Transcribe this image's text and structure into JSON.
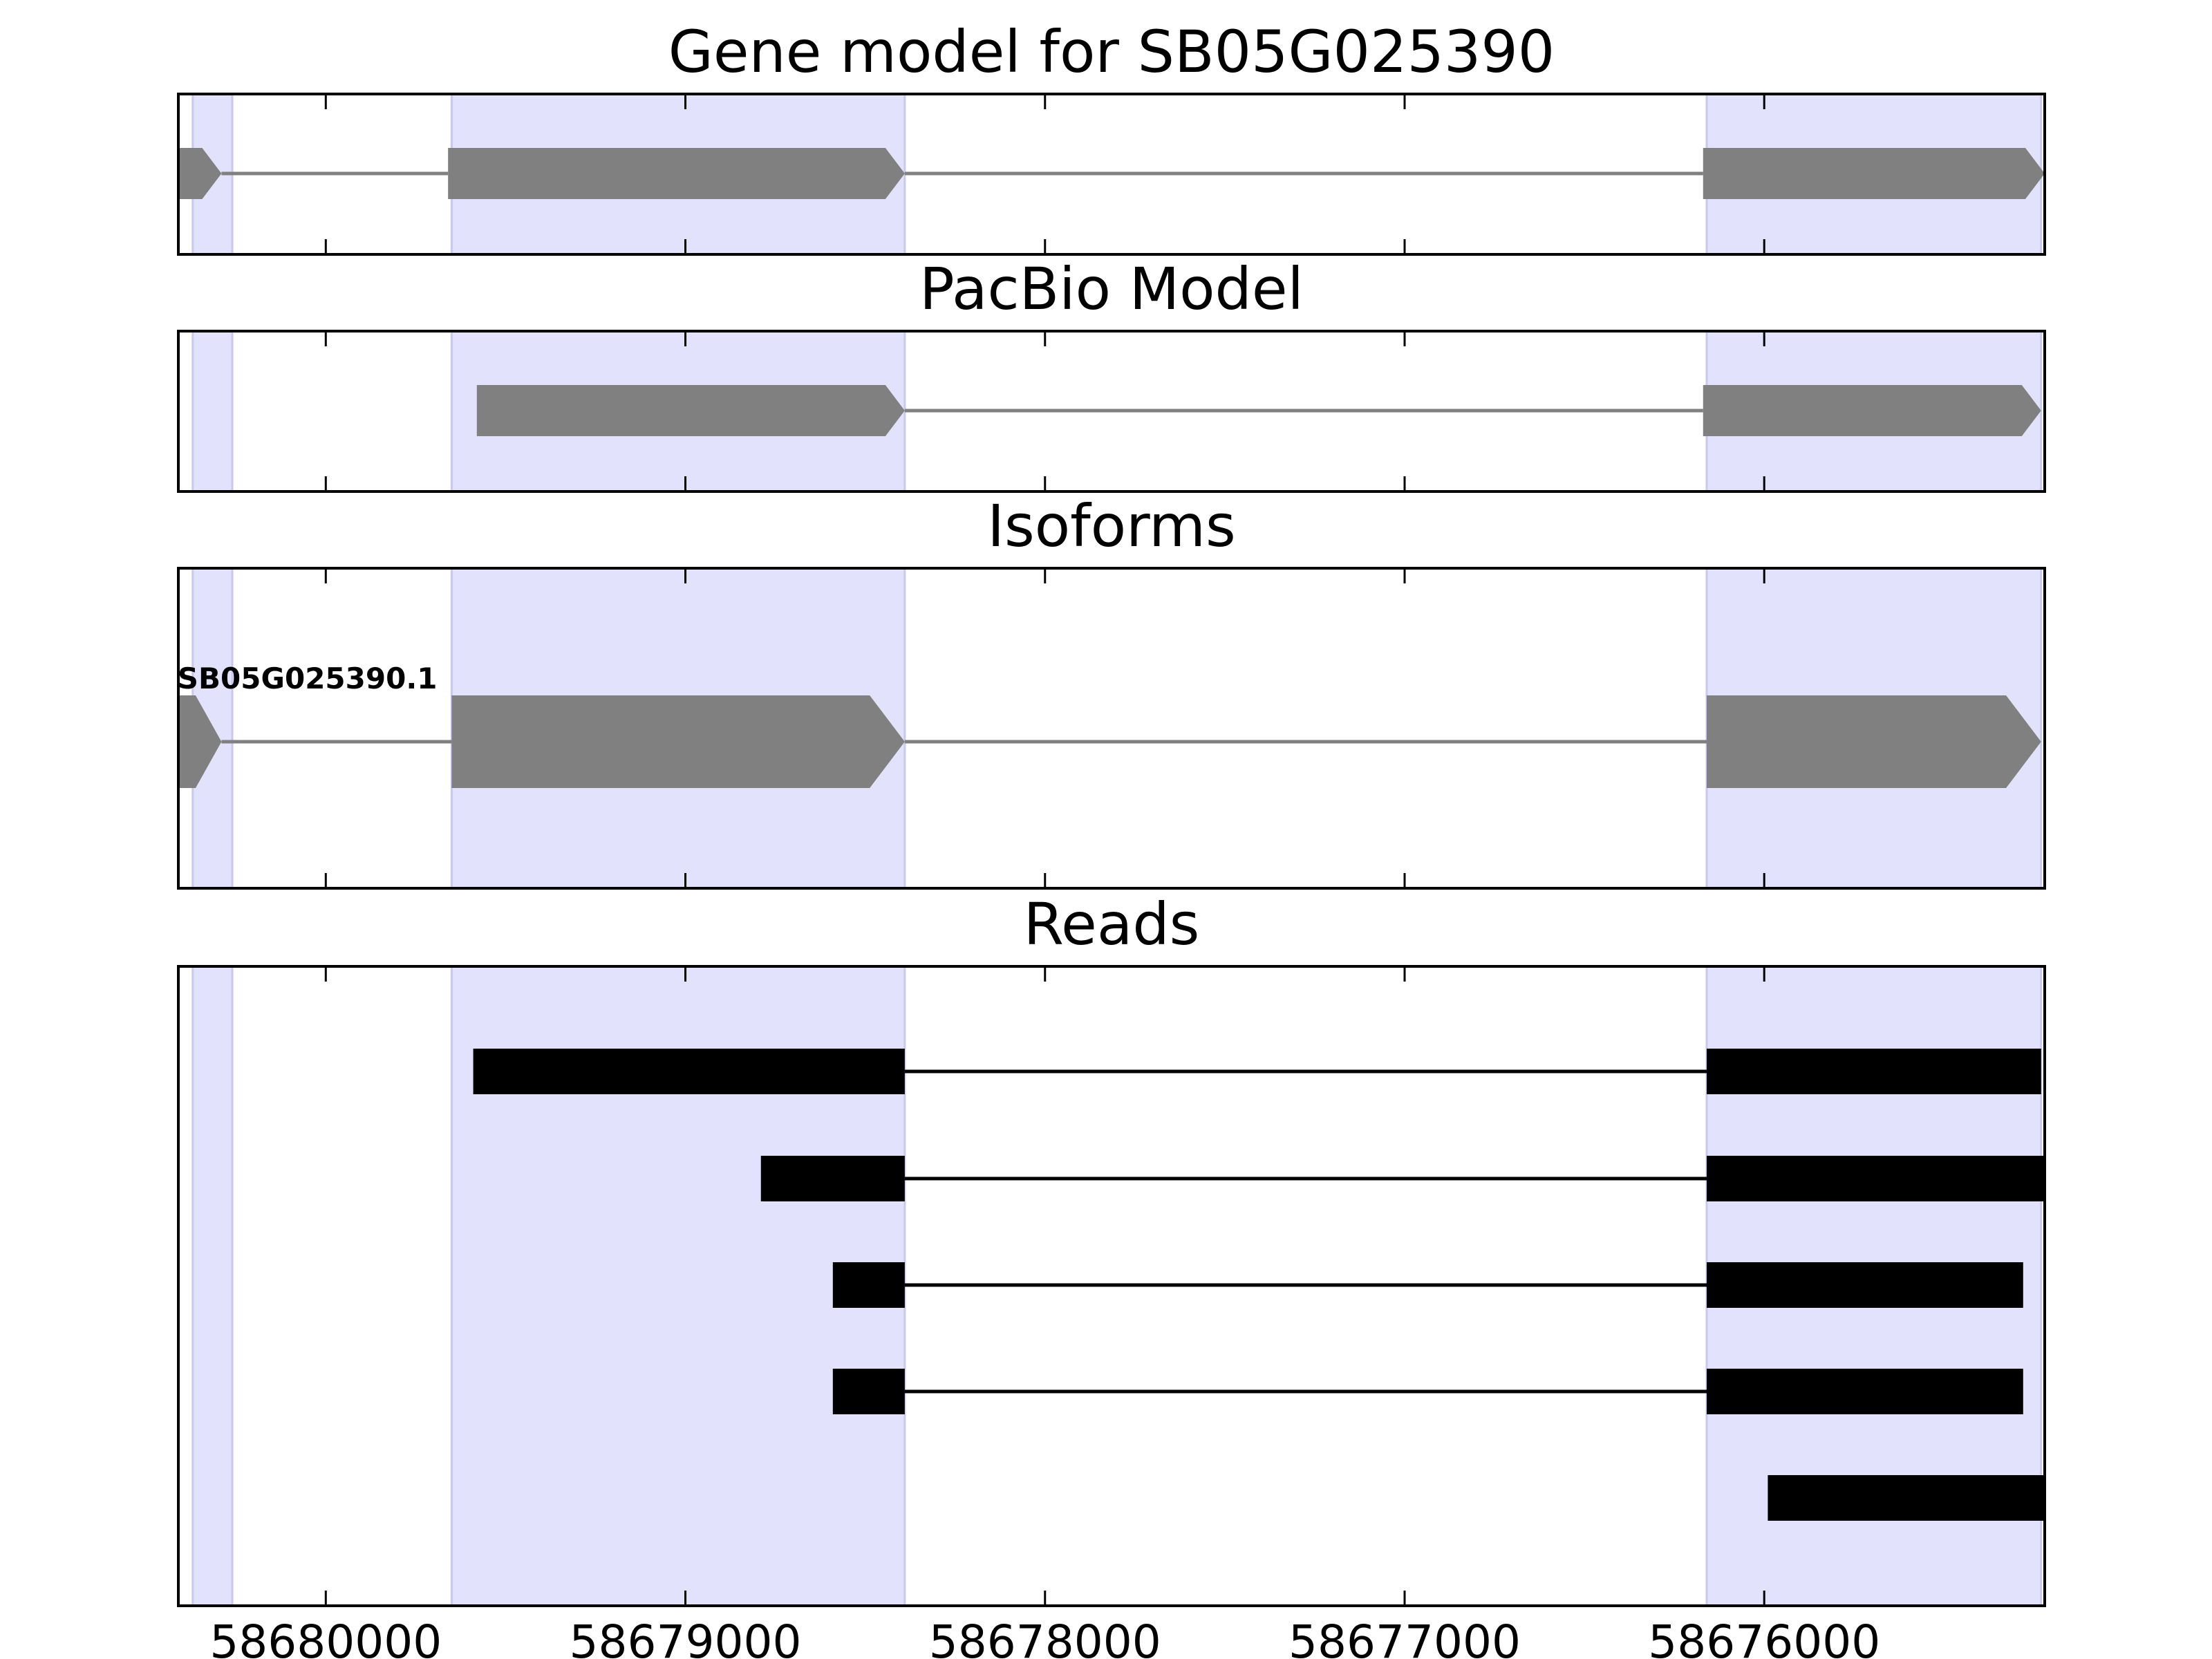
{
  "chart_data": {
    "type": "gene-track",
    "x_axis": {
      "reversed": true,
      "xlim": [
        58680410,
        58675220
      ],
      "ticks": [
        58680000,
        58679000,
        58678000,
        58677000,
        58676000
      ],
      "tick_labels": [
        "58680000",
        "58679000",
        "58678000",
        "58677000",
        "58676000"
      ]
    },
    "highlight_regions": [
      {
        "start": 58680370,
        "end": 58680260
      },
      {
        "start": 58679650,
        "end": 58678390
      },
      {
        "start": 58676160,
        "end": 58675230
      }
    ],
    "colors": {
      "highlight": "#e2e2fc",
      "highlight_edge": "#c8c8f0",
      "model": "#808080",
      "read": "#000000",
      "frame": "#000000"
    },
    "panels": [
      {
        "title": "Gene model for SB05G025390",
        "strand": "-",
        "tracks": [
          {
            "label": "",
            "exons": [
              [
                58680420,
                58680290
              ],
              [
                58679660,
                58678390
              ],
              [
                58676170,
                58675200
              ]
            ]
          }
        ]
      },
      {
        "title": "PacBio Model",
        "strand": "-",
        "tracks": [
          {
            "label": "",
            "exons": [
              [
                58679580,
                58678390
              ],
              [
                58676170,
                58675230
              ]
            ]
          }
        ]
      },
      {
        "title": "Isoforms",
        "strand": "-",
        "tracks": [
          {
            "label": "SB05G025390.1",
            "exons": [
              [
                58680420,
                58680290
              ],
              [
                58679650,
                58678390
              ],
              [
                58676160,
                58675230
              ]
            ]
          }
        ]
      },
      {
        "title": "Reads",
        "tracks": [
          {
            "exons": [
              [
                58679590,
                58678390
              ],
              [
                58676160,
                58675230
              ]
            ]
          },
          {
            "exons": [
              [
                58678790,
                58678390
              ],
              [
                58676160,
                58675220
              ]
            ]
          },
          {
            "exons": [
              [
                58678590,
                58678390
              ],
              [
                58676160,
                58675280
              ]
            ]
          },
          {
            "exons": [
              [
                58678590,
                58678390
              ],
              [
                58676160,
                58675280
              ]
            ]
          },
          {
            "exons": [
              [
                58675990,
                58675190
              ]
            ]
          }
        ]
      }
    ]
  }
}
